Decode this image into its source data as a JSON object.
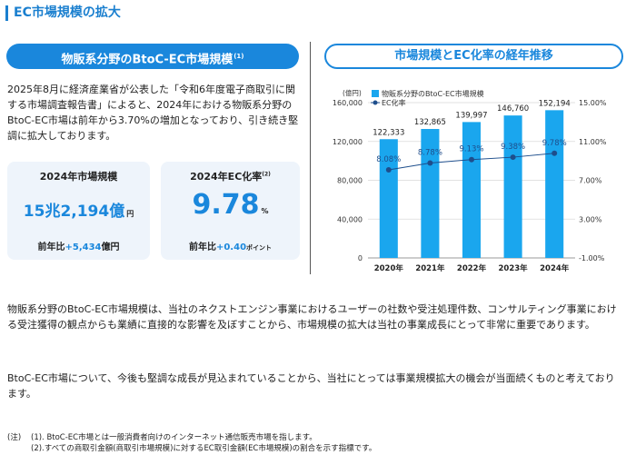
{
  "section_title": "EC市場規模の拡大",
  "left_panel": {
    "title": "物販系分野のBtoC-EC市場規模",
    "title_note": "(1)",
    "intro": "2025年8月に経済産業省が公表した「令和6年度電子商取引に関する市場調査報告書」によると、2024年における物販系分野のBtoC-EC市場は前年から3.70%の増加となっており、引き続き堅調に拡大しております。",
    "kpi1": {
      "label": "2024年市場規模",
      "value": "15兆2,194億",
      "unit": "円",
      "sub_prefix": "前年比",
      "sub_delta": "+5,434",
      "sub_unit": "億円"
    },
    "kpi2": {
      "label": "2024年EC化率",
      "label_note": "(2)",
      "value": "9.78",
      "unit": "%",
      "sub_prefix": "前年比",
      "sub_delta": "+0.40",
      "sub_unit": "ポイント"
    }
  },
  "right_panel": {
    "title": "市場規模とEC化率の経年推移"
  },
  "chart_data": {
    "type": "bar",
    "categories": [
      "2020年",
      "2021年",
      "2022年",
      "2023年",
      "2024年"
    ],
    "series": [
      {
        "name": "物販系分野のBtoC-EC市場規模",
        "kind": "bar",
        "axis": "left",
        "values": [
          122333,
          132865,
          139997,
          146760,
          152194
        ],
        "labels": [
          "122,333",
          "132,865",
          "139,997",
          "146,760",
          "152,194"
        ]
      },
      {
        "name": "EC化率",
        "kind": "line",
        "axis": "right",
        "values": [
          8.08,
          8.78,
          9.13,
          9.38,
          9.78
        ],
        "labels": [
          "8.08%",
          "8.78%",
          "9.13%",
          "9.38%",
          "9.78%"
        ]
      }
    ],
    "y_left_unit": "(億円)",
    "y_left_range": [
      0,
      160000
    ],
    "y_left_ticks": [
      "0",
      "40,000",
      "80,000",
      "120,000",
      "160,000"
    ],
    "y_right_range": [
      -1,
      15
    ],
    "y_right_ticks": [
      "-1.00%",
      "3.00%",
      "7.00%",
      "11.00%",
      "15.00%"
    ],
    "bar_color": "#1aa6ee",
    "line_color": "#1e4e8c",
    "legend_position": "top-left"
  },
  "body": {
    "p1": "物販系分野のBtoC-EC市場規模は、当社のネクストエンジン事業におけるユーザーの社数や受注処理件数、コンサルティング事業における受注獲得の観点からも業績に直接的な影響を及ぼすことから、市場規模の拡大は当社の事業成長にとって非常に重要であります。",
    "p2": "BtoC-EC市場について、今後も堅調な成長が見込まれていることから、当社にとっては事業規模拡大の機会が当面続くものと考えております。"
  },
  "notes": {
    "label": "(注)",
    "items": [
      "(1). BtoC-EC市場とは一般消費者向けのインターネット通信販売市場を指します。",
      "(2).すべての商取引金額(商取引市場規模)に対するEC取引金額(EC市場規模)の割合を示す指標です。"
    ]
  }
}
